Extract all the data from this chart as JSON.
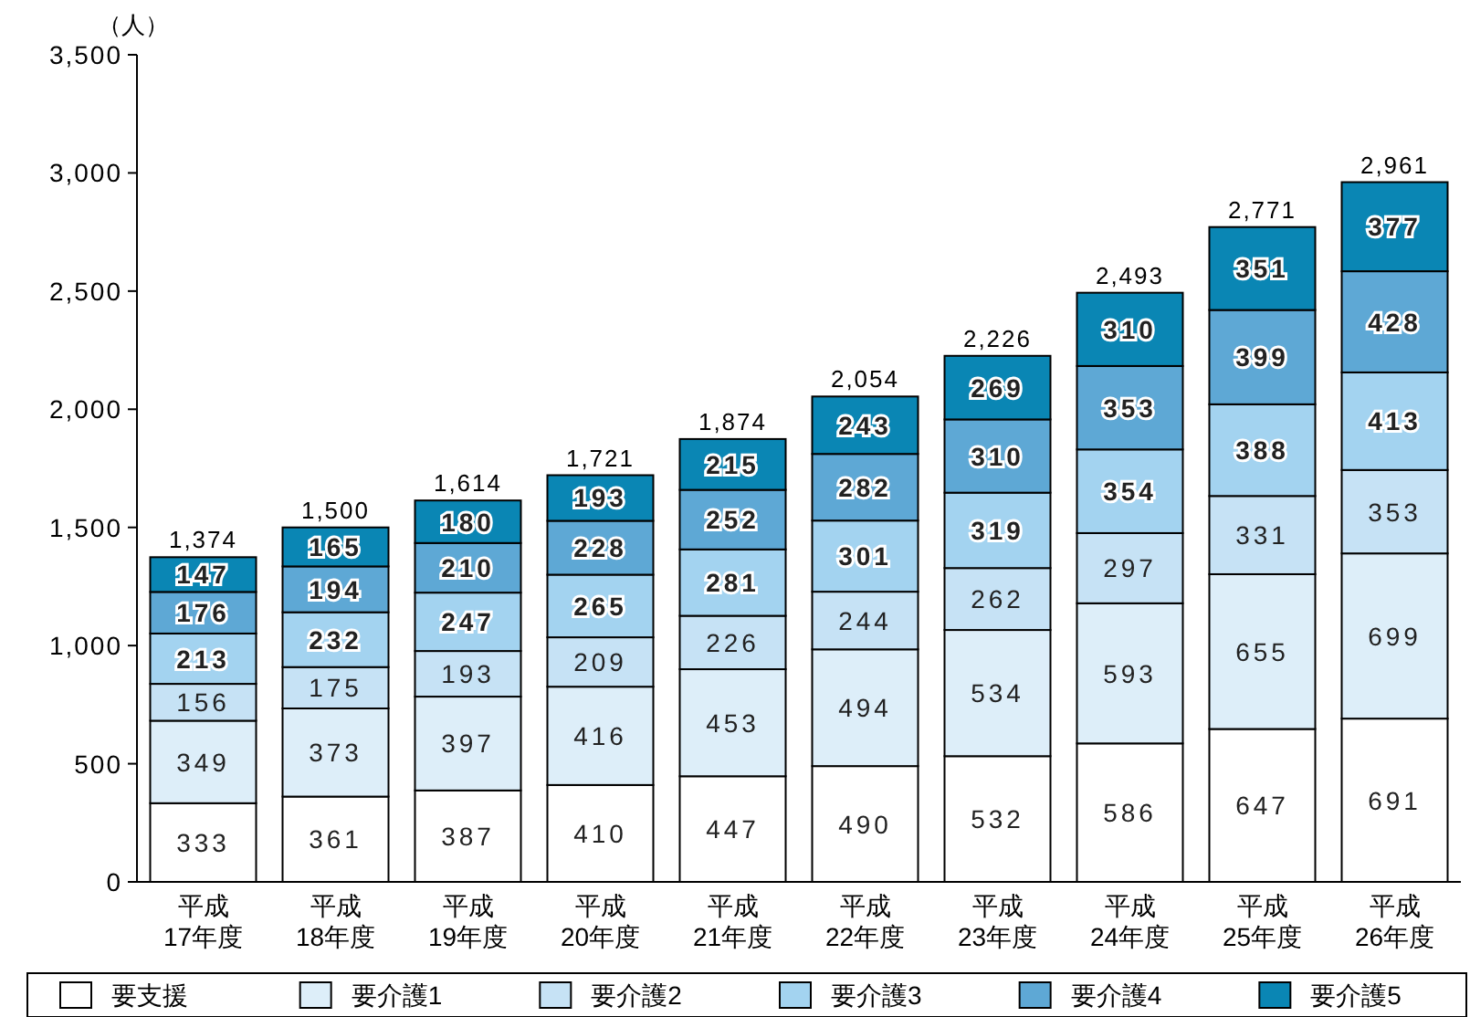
{
  "chart_data": {
    "type": "bar",
    "stacked": true,
    "ylabel": "（人）",
    "categories": [
      "平成17年度",
      "平成18年度",
      "平成19年度",
      "平成20年度",
      "平成21年度",
      "平成22年度",
      "平成23年度",
      "平成24年度",
      "平成25年度",
      "平成26年度"
    ],
    "series": [
      {
        "name": "要支援",
        "color": "#ffffff",
        "values": [
          333,
          361,
          387,
          410,
          447,
          490,
          532,
          586,
          647,
          691
        ]
      },
      {
        "name": "要介護1",
        "color": "#ddeef9",
        "values": [
          349,
          373,
          397,
          416,
          453,
          494,
          534,
          593,
          655,
          699
        ]
      },
      {
        "name": "要介護2",
        "color": "#c6e2f5",
        "values": [
          156,
          175,
          193,
          209,
          226,
          244,
          262,
          297,
          331,
          353
        ]
      },
      {
        "name": "要介護3",
        "color": "#a3d3f0",
        "values": [
          213,
          232,
          247,
          265,
          281,
          301,
          319,
          354,
          388,
          413
        ]
      },
      {
        "name": "要介護4",
        "color": "#5ea8d5",
        "values": [
          176,
          194,
          210,
          228,
          252,
          282,
          310,
          353,
          399,
          428
        ]
      },
      {
        "name": "要介護5",
        "color": "#0a86b4",
        "values": [
          147,
          165,
          180,
          193,
          215,
          243,
          269,
          310,
          351,
          377
        ]
      }
    ],
    "totals": [
      "1,374",
      "1,500",
      "1,614",
      "1,721",
      "1,874",
      "2,054",
      "2,226",
      "2,493",
      "2,771",
      "2,961"
    ],
    "data_labels": true,
    "ylim": [
      0,
      3500
    ],
    "yticks": [
      {
        "value": 0,
        "label": "0"
      },
      {
        "value": 500,
        "label": "500"
      },
      {
        "value": 1000,
        "label": "1,000"
      },
      {
        "value": 1500,
        "label": "1,500"
      },
      {
        "value": 2000,
        "label": "2,000"
      },
      {
        "value": 2500,
        "label": "2,500"
      },
      {
        "value": 3000,
        "label": "3,000"
      },
      {
        "value": 3500,
        "label": "3,500"
      }
    ],
    "grid": false,
    "legend": "bottom"
  }
}
